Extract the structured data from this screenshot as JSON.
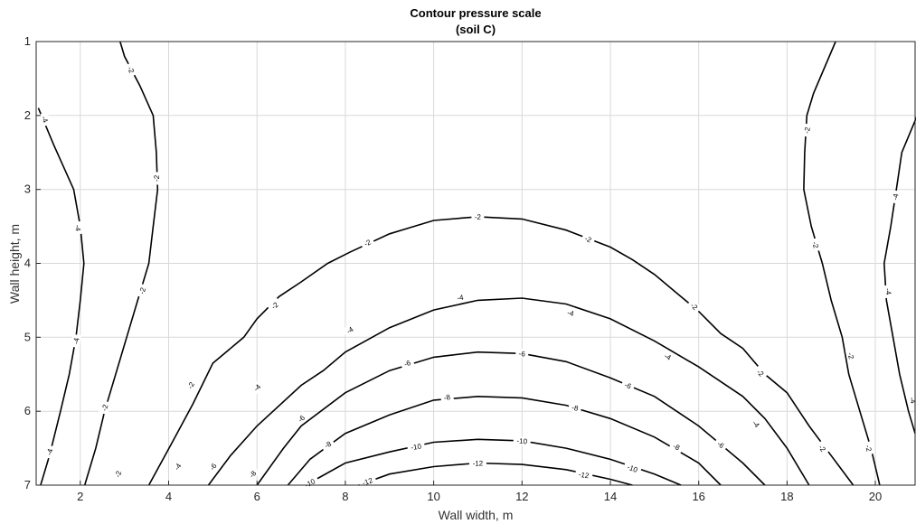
{
  "chart_data": {
    "type": "contour",
    "title": "Contour pressure scale",
    "subtitle": "(soil C)",
    "xlabel": "Wall width, m",
    "ylabel": "Wall height, m",
    "xlim": [
      1,
      20.9
    ],
    "ylim": [
      1,
      7
    ],
    "y_reversed": true,
    "grid": true,
    "x_ticks": [
      2,
      4,
      6,
      8,
      10,
      12,
      14,
      16,
      18,
      20
    ],
    "y_ticks": [
      1,
      2,
      3,
      4,
      5,
      6,
      7
    ],
    "contours": [
      {
        "level": "-4",
        "segment": "left-edge",
        "points": [
          [
            1.05,
            1.9
          ],
          [
            1.4,
            2.4
          ],
          [
            1.85,
            3.0
          ],
          [
            2.0,
            3.5
          ],
          [
            2.08,
            4.0
          ],
          [
            2.0,
            4.5
          ],
          [
            1.9,
            5.0
          ],
          [
            1.75,
            5.5
          ],
          [
            1.55,
            6.0
          ],
          [
            1.3,
            6.6
          ],
          [
            1.1,
            7.0
          ]
        ],
        "labels": [
          [
            1.2,
            2.05
          ],
          [
            1.95,
            3.52
          ],
          [
            1.9,
            5.05
          ],
          [
            1.3,
            6.55
          ]
        ]
      },
      {
        "level": "-2",
        "segment": "left",
        "points": [
          [
            2.9,
            1.0
          ],
          [
            3.0,
            1.2
          ],
          [
            3.35,
            1.6
          ],
          [
            3.65,
            2.0
          ],
          [
            3.72,
            2.5
          ],
          [
            3.75,
            3.0
          ],
          [
            3.65,
            3.5
          ],
          [
            3.55,
            4.0
          ],
          [
            3.3,
            4.5
          ],
          [
            3.05,
            5.0
          ],
          [
            2.8,
            5.5
          ],
          [
            2.55,
            6.0
          ],
          [
            2.35,
            6.5
          ],
          [
            2.1,
            7.0
          ]
        ],
        "labels": [
          [
            3.15,
            1.38
          ],
          [
            3.72,
            2.85
          ],
          [
            3.4,
            4.37
          ],
          [
            2.55,
            5.95
          ],
          [
            2.85,
            6.85
          ]
        ]
      },
      {
        "level": "-2",
        "segment": "dome",
        "points": [
          [
            3.55,
            7.0
          ],
          [
            4.1,
            6.4
          ],
          [
            4.55,
            5.9
          ],
          [
            5.0,
            5.35
          ],
          [
            5.7,
            5.0
          ],
          [
            6.0,
            4.75
          ],
          [
            6.5,
            4.45
          ],
          [
            7.0,
            4.25
          ],
          [
            7.6,
            4.0
          ],
          [
            8.1,
            3.85
          ],
          [
            9.0,
            3.6
          ],
          [
            10.0,
            3.42
          ],
          [
            11.0,
            3.37
          ],
          [
            12.0,
            3.4
          ],
          [
            13.0,
            3.55
          ],
          [
            14.0,
            3.78
          ],
          [
            14.5,
            3.95
          ],
          [
            15.0,
            4.15
          ],
          [
            15.5,
            4.4
          ],
          [
            16.0,
            4.65
          ],
          [
            16.5,
            4.95
          ],
          [
            17.0,
            5.15
          ],
          [
            17.5,
            5.5
          ],
          [
            18.0,
            5.75
          ],
          [
            18.5,
            6.2
          ],
          [
            19.0,
            6.6
          ],
          [
            19.5,
            7.0
          ]
        ],
        "labels": [
          [
            4.5,
            5.65
          ],
          [
            6.4,
            4.57
          ],
          [
            8.5,
            3.72
          ],
          [
            11.0,
            3.37
          ],
          [
            13.5,
            3.67
          ],
          [
            15.9,
            4.58
          ],
          [
            17.4,
            5.48
          ],
          [
            18.8,
            6.5
          ]
        ]
      },
      {
        "level": "-4",
        "segment": "dome",
        "points": [
          [
            4.9,
            7.0
          ],
          [
            5.4,
            6.6
          ],
          [
            6.0,
            6.2
          ],
          [
            7.0,
            5.65
          ],
          [
            7.5,
            5.45
          ],
          [
            8.0,
            5.2
          ],
          [
            9.0,
            4.87
          ],
          [
            10.0,
            4.63
          ],
          [
            11.0,
            4.5
          ],
          [
            12.0,
            4.47
          ],
          [
            13.0,
            4.55
          ],
          [
            14.0,
            4.75
          ],
          [
            15.0,
            5.05
          ],
          [
            16.0,
            5.4
          ],
          [
            17.0,
            5.8
          ],
          [
            17.5,
            6.1
          ],
          [
            18.0,
            6.5
          ],
          [
            18.5,
            7.0
          ]
        ],
        "labels": [
          [
            4.2,
            6.75
          ],
          [
            6.0,
            5.68
          ],
          [
            8.1,
            4.9
          ],
          [
            10.6,
            4.46
          ],
          [
            13.1,
            4.67
          ],
          [
            15.3,
            5.26
          ],
          [
            17.3,
            6.17
          ]
        ]
      },
      {
        "level": "-6",
        "segment": "dome",
        "points": [
          [
            6.0,
            7.0
          ],
          [
            6.6,
            6.5
          ],
          [
            7.0,
            6.2
          ],
          [
            8.0,
            5.75
          ],
          [
            9.0,
            5.45
          ],
          [
            10.0,
            5.27
          ],
          [
            11.0,
            5.2
          ],
          [
            12.0,
            5.22
          ],
          [
            13.0,
            5.33
          ],
          [
            14.0,
            5.55
          ],
          [
            15.0,
            5.8
          ],
          [
            16.0,
            6.2
          ],
          [
            17.0,
            6.7
          ],
          [
            17.5,
            7.0
          ]
        ],
        "labels": [
          [
            5.0,
            6.75
          ],
          [
            7.0,
            6.1
          ],
          [
            9.4,
            5.35
          ],
          [
            12.0,
            5.22
          ],
          [
            14.4,
            5.65
          ],
          [
            16.5,
            6.45
          ]
        ]
      },
      {
        "level": "-8",
        "segment": "dome",
        "points": [
          [
            6.7,
            7.0
          ],
          [
            7.2,
            6.65
          ],
          [
            8.0,
            6.3
          ],
          [
            9.0,
            6.05
          ],
          [
            10.0,
            5.85
          ],
          [
            11.0,
            5.8
          ],
          [
            12.0,
            5.82
          ],
          [
            13.0,
            5.92
          ],
          [
            14.0,
            6.1
          ],
          [
            15.0,
            6.35
          ],
          [
            16.0,
            6.7
          ],
          [
            16.5,
            7.0
          ]
        ],
        "labels": [
          [
            5.9,
            6.85
          ],
          [
            7.6,
            6.45
          ],
          [
            10.3,
            5.81
          ],
          [
            13.2,
            5.95
          ],
          [
            15.5,
            6.48
          ]
        ]
      },
      {
        "level": "-10",
        "segment": "dome",
        "points": [
          [
            7.1,
            7.0
          ],
          [
            8.0,
            6.7
          ],
          [
            9.0,
            6.55
          ],
          [
            10.0,
            6.42
          ],
          [
            11.0,
            6.38
          ],
          [
            12.0,
            6.4
          ],
          [
            13.0,
            6.5
          ],
          [
            14.0,
            6.65
          ],
          [
            15.0,
            6.85
          ],
          [
            15.6,
            7.0
          ]
        ],
        "labels": [
          [
            7.2,
            6.97
          ],
          [
            9.6,
            6.48
          ],
          [
            12.0,
            6.4
          ],
          [
            14.5,
            6.77
          ]
        ]
      },
      {
        "level": "-12",
        "segment": "dome",
        "points": [
          [
            8.3,
            7.0
          ],
          [
            9.0,
            6.85
          ],
          [
            10.0,
            6.75
          ],
          [
            11.0,
            6.7
          ],
          [
            12.0,
            6.72
          ],
          [
            13.0,
            6.79
          ],
          [
            14.0,
            6.92
          ],
          [
            14.5,
            7.0
          ]
        ],
        "labels": [
          [
            8.5,
            6.95
          ],
          [
            11.0,
            6.7
          ],
          [
            13.4,
            6.86
          ]
        ]
      },
      {
        "level": "-2",
        "segment": "right",
        "points": [
          [
            19.1,
            1.0
          ],
          [
            18.6,
            1.7
          ],
          [
            18.45,
            2.0
          ],
          [
            18.4,
            2.5
          ],
          [
            18.38,
            3.0
          ],
          [
            18.55,
            3.5
          ],
          [
            18.8,
            4.0
          ],
          [
            19.0,
            4.5
          ],
          [
            19.25,
            5.0
          ],
          [
            19.4,
            5.5
          ],
          [
            19.65,
            6.0
          ],
          [
            19.9,
            6.5
          ],
          [
            20.1,
            7.0
          ]
        ],
        "labels": [
          [
            18.45,
            2.2
          ],
          [
            18.65,
            3.75
          ],
          [
            19.45,
            5.25
          ],
          [
            19.85,
            6.5
          ]
        ]
      },
      {
        "level": "-4",
        "segment": "right-edge",
        "points": [
          [
            20.95,
            2.0
          ],
          [
            20.6,
            2.5
          ],
          [
            20.5,
            2.9
          ],
          [
            20.35,
            3.5
          ],
          [
            20.2,
            4.0
          ],
          [
            20.25,
            4.5
          ],
          [
            20.4,
            5.0
          ],
          [
            20.55,
            5.5
          ],
          [
            20.75,
            6.0
          ],
          [
            20.9,
            6.3
          ]
        ],
        "labels": [
          [
            20.45,
            3.1
          ],
          [
            20.3,
            4.38
          ],
          [
            20.85,
            5.85
          ]
        ]
      }
    ]
  }
}
